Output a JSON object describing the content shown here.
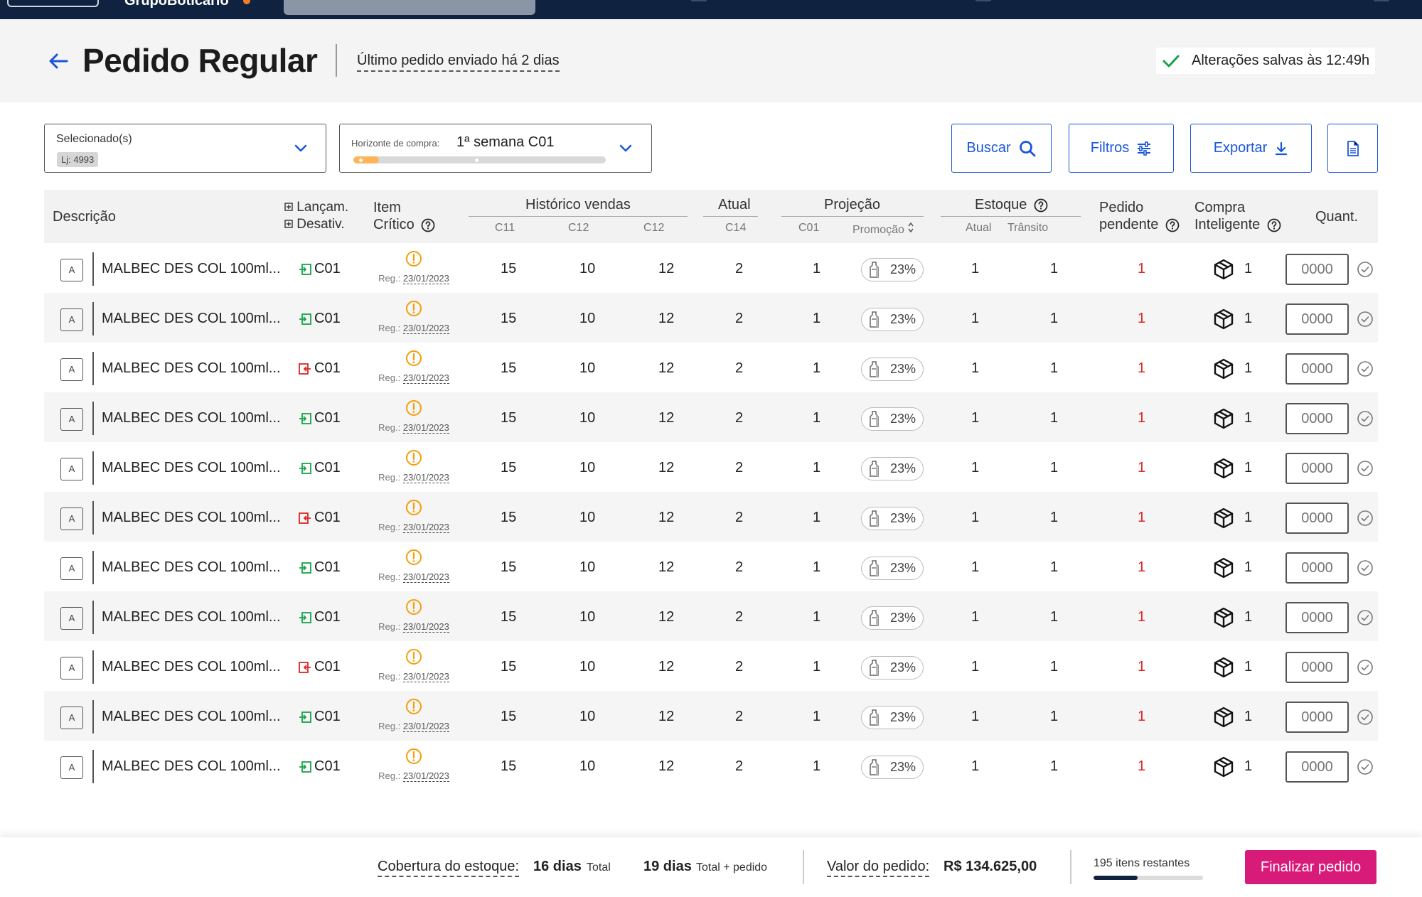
{
  "topbar": {
    "brand": "GrupoBoticário"
  },
  "header": {
    "title": "Pedido Regular",
    "last_order": "Último pedido enviado há 2 dias",
    "saved_status": "Alterações salvas às 12:49h"
  },
  "filters": {
    "store_label": "Selecionado(s)",
    "store_chip": "Lj: 4993",
    "horizon_label": "Horizonte de compra:",
    "horizon_value": "1ª semana C01",
    "horizon_progress": 0.1
  },
  "actions": {
    "search": "Buscar",
    "filters": "Filtros",
    "export": "Exportar"
  },
  "table": {
    "headers": {
      "description": "Descrição",
      "launch": "Lançam.",
      "deactivate": "Desativ.",
      "critical_1": "Item",
      "critical_2": "Crítico",
      "sales_history": "Histórico vendas",
      "current": "Atual",
      "projection": "Projeção",
      "stock": "Estoque",
      "pending_1": "Pedido",
      "pending_2": "pendente",
      "smart_1": "Compra",
      "smart_2": "Inteligente",
      "qty": "Quant."
    },
    "subheaders": {
      "h1": "C11",
      "h2": "C12",
      "h3": "C12",
      "current": "C14",
      "proj_cycle": "C01",
      "proj_promo": "Promoção",
      "stock_current": "Atual",
      "stock_transit": "Trânsito"
    },
    "rows": [
      {
        "abc": "A",
        "description": "MALBEC DES COL 100ml...",
        "status": "launch",
        "cycle": "C01",
        "reg": "Reg.:",
        "reg_date": "23/01/2023",
        "h1": "15",
        "h2": "10",
        "h3": "12",
        "current": "2",
        "projection": "1",
        "promo": "23%",
        "stock_current": "1",
        "stock_transit": "1",
        "pending": "1",
        "smart": "1",
        "qty_placeholder": "0000"
      },
      {
        "abc": "A",
        "description": "MALBEC DES COL 100ml...",
        "status": "launch",
        "cycle": "C01",
        "reg": "Reg.:",
        "reg_date": "23/01/2023",
        "h1": "15",
        "h2": "10",
        "h3": "12",
        "current": "2",
        "projection": "1",
        "promo": "23%",
        "stock_current": "1",
        "stock_transit": "1",
        "pending": "1",
        "smart": "1",
        "qty_placeholder": "0000"
      },
      {
        "abc": "A",
        "description": "MALBEC DES COL 100ml...",
        "status": "deactivate",
        "cycle": "C01",
        "reg": "Reg.:",
        "reg_date": "23/01/2023",
        "h1": "15",
        "h2": "10",
        "h3": "12",
        "current": "2",
        "projection": "1",
        "promo": "23%",
        "stock_current": "1",
        "stock_transit": "1",
        "pending": "1",
        "smart": "1",
        "qty_placeholder": "0000"
      },
      {
        "abc": "A",
        "description": "MALBEC DES COL 100ml...",
        "status": "launch",
        "cycle": "C01",
        "reg": "Reg.:",
        "reg_date": "23/01/2023",
        "h1": "15",
        "h2": "10",
        "h3": "12",
        "current": "2",
        "projection": "1",
        "promo": "23%",
        "stock_current": "1",
        "stock_transit": "1",
        "pending": "1",
        "smart": "1",
        "qty_placeholder": "0000"
      },
      {
        "abc": "A",
        "description": "MALBEC DES COL 100ml...",
        "status": "launch",
        "cycle": "C01",
        "reg": "Reg.:",
        "reg_date": "23/01/2023",
        "h1": "15",
        "h2": "10",
        "h3": "12",
        "current": "2",
        "projection": "1",
        "promo": "23%",
        "stock_current": "1",
        "stock_transit": "1",
        "pending": "1",
        "smart": "1",
        "qty_placeholder": "0000"
      },
      {
        "abc": "A",
        "description": "MALBEC DES COL 100ml...",
        "status": "deactivate",
        "cycle": "C01",
        "reg": "Reg.:",
        "reg_date": "23/01/2023",
        "h1": "15",
        "h2": "10",
        "h3": "12",
        "current": "2",
        "projection": "1",
        "promo": "23%",
        "stock_current": "1",
        "stock_transit": "1",
        "pending": "1",
        "smart": "1",
        "qty_placeholder": "0000"
      },
      {
        "abc": "A",
        "description": "MALBEC DES COL 100ml...",
        "status": "launch",
        "cycle": "C01",
        "reg": "Reg.:",
        "reg_date": "23/01/2023",
        "h1": "15",
        "h2": "10",
        "h3": "12",
        "current": "2",
        "projection": "1",
        "promo": "23%",
        "stock_current": "1",
        "stock_transit": "1",
        "pending": "1",
        "smart": "1",
        "qty_placeholder": "0000"
      },
      {
        "abc": "A",
        "description": "MALBEC DES COL 100ml...",
        "status": "launch",
        "cycle": "C01",
        "reg": "Reg.:",
        "reg_date": "23/01/2023",
        "h1": "15",
        "h2": "10",
        "h3": "12",
        "current": "2",
        "projection": "1",
        "promo": "23%",
        "stock_current": "1",
        "stock_transit": "1",
        "pending": "1",
        "smart": "1",
        "qty_placeholder": "0000"
      },
      {
        "abc": "A",
        "description": "MALBEC DES COL 100ml...",
        "status": "deactivate",
        "cycle": "C01",
        "reg": "Reg.:",
        "reg_date": "23/01/2023",
        "h1": "15",
        "h2": "10",
        "h3": "12",
        "current": "2",
        "projection": "1",
        "promo": "23%",
        "stock_current": "1",
        "stock_transit": "1",
        "pending": "1",
        "smart": "1",
        "qty_placeholder": "0000"
      },
      {
        "abc": "A",
        "description": "MALBEC DES COL 100ml...",
        "status": "launch",
        "cycle": "C01",
        "reg": "Reg.:",
        "reg_date": "23/01/2023",
        "h1": "15",
        "h2": "10",
        "h3": "12",
        "current": "2",
        "projection": "1",
        "promo": "23%",
        "stock_current": "1",
        "stock_transit": "1",
        "pending": "1",
        "smart": "1",
        "qty_placeholder": "0000"
      },
      {
        "abc": "A",
        "description": "MALBEC DES COL 100ml...",
        "status": "launch",
        "cycle": "C01",
        "reg": "Reg.:",
        "reg_date": "23/01/2023",
        "h1": "15",
        "h2": "10",
        "h3": "12",
        "current": "2",
        "projection": "1",
        "promo": "23%",
        "stock_current": "1",
        "stock_transit": "1",
        "pending": "1",
        "smart": "1",
        "qty_placeholder": "0000"
      }
    ]
  },
  "footer": {
    "coverage_label": "Cobertura do estoque:",
    "coverage_total_value": "16 dias",
    "coverage_total_label": "Total",
    "coverage_order_value": "19 dias",
    "coverage_order_label": "Total + pedido",
    "order_value_label": "Valor do pedido:",
    "order_value": "R$ 134.625,00",
    "remaining": "195 itens restantes",
    "remaining_progress": 0.4,
    "finalize": "Finalizar pedido"
  },
  "colors": {
    "brand_blue": "#1a56db",
    "navy": "#0f2340",
    "pending_red": "#e02424",
    "launch_green": "#16a34a",
    "deactivate_red": "#dc2626",
    "warning_orange": "#f59e0b",
    "finalize_pink": "#d81b79"
  },
  "icons": {
    "back": "arrow-left-icon",
    "saved": "check-icon",
    "search": "search-icon",
    "filters": "sliders-icon",
    "export": "download-icon",
    "doc": "document-icon",
    "critical": "alert-circle-icon",
    "promo": "bottle-icon",
    "smart": "box-icon",
    "row_action": "check-circle-icon",
    "launch": "arrow-in-icon",
    "deactivate": "arrow-out-icon"
  }
}
